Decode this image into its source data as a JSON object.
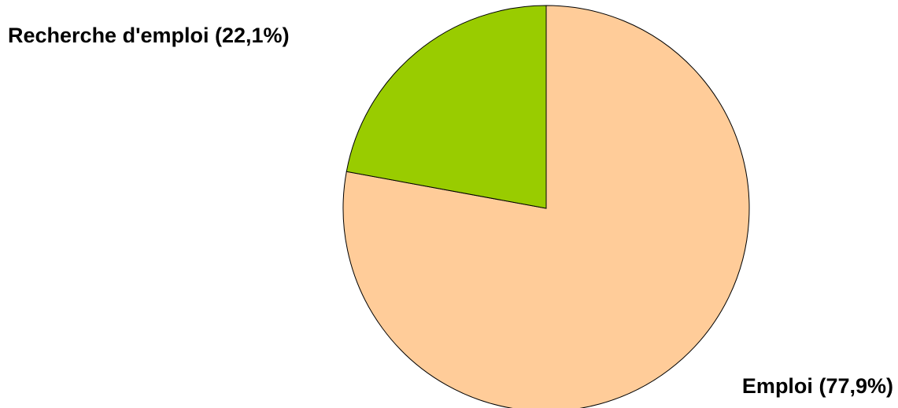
{
  "chart_data": {
    "type": "pie",
    "categories": [
      "Emploi",
      "Recherche d'emploi"
    ],
    "values": [
      77.9,
      22.1
    ],
    "value_labels": [
      "(77,9%)",
      "(22,1%)"
    ],
    "colors": [
      "#ffcc99",
      "#99cc00"
    ]
  }
}
